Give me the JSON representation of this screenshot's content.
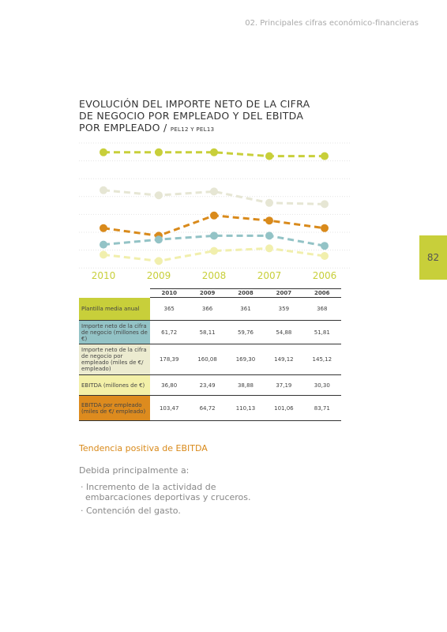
{
  "header": {
    "section": "02. Principales cifras económico-financieras",
    "page": "82"
  },
  "chart_data": {
    "type": "line",
    "title": "EVOLUCIÓN DEL IMPORTE NETO DE LA CIFRA DE NEGOCIO POR EMPLEADO Y DEL EBITDA POR EMPLEADO /",
    "subtitle": "PEL12 Y PEL13",
    "categories": [
      "2010",
      "2009",
      "2008",
      "2007",
      "2006"
    ],
    "ylim": [
      0,
      100
    ],
    "series": [
      {
        "color": "#c8cf3a",
        "values": [
          92,
          92,
          92,
          89,
          89
        ]
      },
      {
        "color": "#e6e6d4",
        "values": [
          62,
          58,
          61,
          52,
          51
        ]
      },
      {
        "color": "#d98a1b",
        "values": [
          32,
          26,
          42,
          38,
          32
        ]
      },
      {
        "color": "#93c3c6",
        "values": [
          19,
          23,
          26,
          26,
          18
        ]
      },
      {
        "color": "#f1efad",
        "values": [
          11,
          6,
          14,
          16,
          10
        ]
      }
    ]
  },
  "table": {
    "columns": [
      "2010",
      "2009",
      "2008",
      "2007",
      "2006"
    ],
    "rows": [
      {
        "label": "Plantilla media anual",
        "color": "#c8cf3a",
        "cells": [
          "365",
          "366",
          "361",
          "359",
          "368"
        ]
      },
      {
        "label": "Importe neto de la cifra de negocio (millones de €)",
        "color": "#93c3c6",
        "cells": [
          "61,72",
          "58,11",
          "59,76",
          "54,88",
          "51,81"
        ]
      },
      {
        "label": "Importe neto de la cifra de negocio por empleado (miles de €/ empleado)",
        "color": "#ecebd0",
        "cells": [
          "178,39",
          "160,08",
          "169,30",
          "149,12",
          "145,12"
        ]
      },
      {
        "label": "EBITDA (millones de €)",
        "color": "#f3f0a8",
        "cells": [
          "36,80",
          "23,49",
          "38,88",
          "37,19",
          "30,30"
        ]
      },
      {
        "label": "EBITDA por empleado (miles de €/ empleado)",
        "color": "#dd8b1e",
        "cells": [
          "103,47",
          "64,72",
          "110,13",
          "101,06",
          "83,71"
        ]
      }
    ]
  },
  "body": {
    "heading": "Tendencia positiva de EBITDA",
    "intro": "Debida principalmente a:",
    "bullets": [
      "Incremento de la actividad de embarcaciones deportivas y cruceros.",
      "Contención del gasto."
    ]
  }
}
